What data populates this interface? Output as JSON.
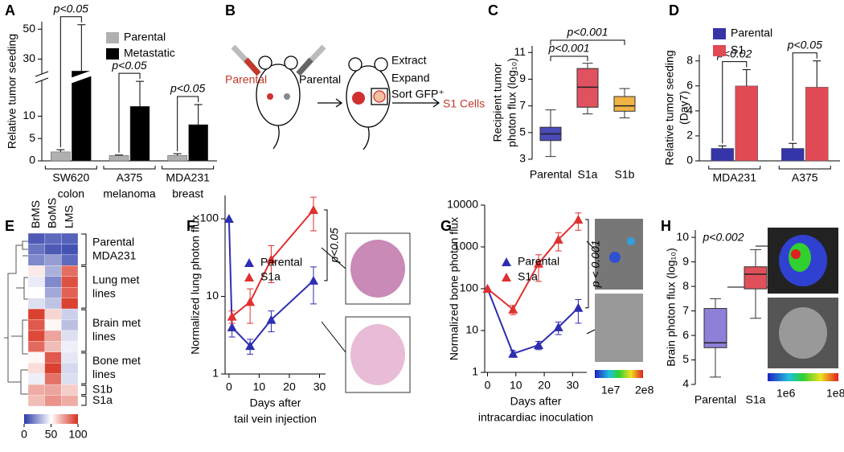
{
  "chart_data": [
    {
      "type": "bar",
      "label": "A",
      "categories": [
        "SW620",
        "A375",
        "MDA231"
      ],
      "category_sublabels": [
        "colon",
        "melanoma",
        "breast"
      ],
      "series": [
        {
          "name": "Parental",
          "color": "#b0b0b0",
          "values": [
            2,
            1.2,
            1.2
          ],
          "errors": [
            0.5,
            0.1,
            0.4
          ]
        },
        {
          "name": "Metastatic",
          "color": "#000000",
          "values": [
            22,
            12.2,
            8.1
          ],
          "errors": [
            31,
            5.6,
            4.5
          ]
        }
      ],
      "ylabel": "Relative tumor seeding",
      "ylim": [
        0,
        55
      ],
      "ybreak": [
        18,
        20
      ],
      "yticks": [
        0,
        5,
        10,
        30,
        50
      ],
      "annotations": [
        "p<0.05",
        "p<0.05",
        "p<0.05"
      ]
    },
    {
      "type": "box",
      "label": "C",
      "categories": [
        "Parental",
        "S1a",
        "S1b"
      ],
      "colors": [
        "#4a4ab8",
        "#e05260",
        "#f0b444"
      ],
      "whisker_low": [
        3.2,
        6.4,
        6.1
      ],
      "q1": [
        4.4,
        6.9,
        6.6
      ],
      "median": [
        4.9,
        8.4,
        7.0
      ],
      "q3": [
        5.4,
        9.8,
        7.7
      ],
      "whisker_high": [
        6.7,
        10.2,
        8.3
      ],
      "ylabel": [
        "Recipient tumor",
        "photon flux  (log₁₀)"
      ],
      "ylim": [
        3,
        11.5
      ],
      "yticks": [
        3,
        5,
        7,
        9,
        11
      ],
      "annotations": [
        "p<0.001",
        "p<0.001"
      ]
    },
    {
      "type": "bar",
      "label": "D",
      "categories": [
        "MDA231",
        "A375"
      ],
      "series": [
        {
          "name": "Parental",
          "color": "#3535a8",
          "values": [
            1,
            1
          ],
          "errors": [
            0.2,
            0.4
          ]
        },
        {
          "name": "S1",
          "color": "#e04a55",
          "values": [
            6,
            5.9
          ],
          "errors": [
            1.3,
            2.1
          ]
        }
      ],
      "ylabel": [
        "Relative tumor seeding",
        "(Day7)"
      ],
      "ylim": [
        0,
        8.5
      ],
      "yticks": [
        0,
        2,
        4,
        6,
        8
      ],
      "annotations": [
        "p<0.02",
        "p<0.05"
      ]
    },
    {
      "type": "heatmap",
      "label": "E",
      "columns": [
        "BrMS",
        "BoMS",
        "LMS"
      ],
      "matrix": [
        [
          8,
          12,
          10
        ],
        [
          15,
          8,
          6
        ],
        [
          20,
          25,
          12
        ],
        [
          55,
          30,
          85
        ],
        [
          45,
          20,
          92
        ],
        [
          50,
          28,
          88
        ],
        [
          42,
          35,
          96
        ],
        [
          96,
          60,
          38
        ],
        [
          90,
          52,
          34
        ],
        [
          94,
          72,
          42
        ],
        [
          86,
          66,
          46
        ],
        [
          52,
          90,
          44
        ],
        [
          58,
          96,
          40
        ],
        [
          46,
          84,
          42
        ],
        [
          70,
          72,
          62
        ],
        [
          66,
          76,
          70
        ]
      ],
      "row_groups": [
        [
          "Parental",
          "MDA231"
        ],
        [
          "Lung met",
          "lines"
        ],
        [
          "Brain met",
          "lines"
        ],
        [
          "Bone met",
          "lines"
        ],
        [
          "S1b"
        ],
        [
          "S1a"
        ]
      ],
      "zlim": [
        0,
        100
      ],
      "colorbar_ticks": [
        0,
        50,
        100
      ]
    },
    {
      "type": "line",
      "label": "F",
      "x": [
        0,
        1,
        7,
        14,
        28
      ],
      "series": [
        {
          "name": "Parental",
          "color": "#2e2eb0",
          "values": [
            100,
            4,
            2.3,
            5,
            16
          ],
          "errors": [
            0,
            1,
            0.5,
            1.5,
            8
          ]
        },
        {
          "name": "S1a",
          "color": "#e03030",
          "values": [
            null,
            5.5,
            8.5,
            30,
            130
          ],
          "errors": [
            null,
            1,
            4,
            15,
            60
          ]
        }
      ],
      "xlabel": [
        "Days after",
        "tail vein injection"
      ],
      "ylabel": "Normalized lung photon flux",
      "log_y": true,
      "xlim": [
        -1.3,
        32
      ],
      "xticks": [
        0,
        10,
        20,
        30
      ],
      "ylim": [
        1,
        200
      ],
      "yticks": [
        1,
        10,
        100
      ],
      "annotations": [
        "p<0.05"
      ]
    },
    {
      "type": "line",
      "label": "G",
      "x": [
        0,
        9,
        18,
        25,
        32
      ],
      "series": [
        {
          "name": "Parental",
          "color": "#2e2eb0",
          "values": [
            100,
            2.8,
            4.5,
            12,
            35
          ],
          "errors": [
            0,
            0.5,
            1,
            4,
            20
          ]
        },
        {
          "name": "S1a",
          "color": "#e03030",
          "values": [
            100,
            32,
            400,
            1500,
            4500
          ],
          "errors": [
            0,
            8,
            250,
            700,
            2000
          ]
        }
      ],
      "xlabel": [
        "Days after",
        "intracardiac inoculation"
      ],
      "ylabel": "Normalized bone photon flux",
      "log_y": true,
      "xlim": [
        -1,
        35
      ],
      "xticks": [
        0,
        10,
        20,
        30
      ],
      "ylim": [
        1,
        10000
      ],
      "yticks": [
        1,
        10,
        100,
        1000,
        10000
      ],
      "annotations": [
        "p < 0.001"
      ],
      "image_scale": [
        "1e7",
        "2e8"
      ]
    },
    {
      "type": "box",
      "label": "H",
      "categories": [
        "Parental",
        "S1a"
      ],
      "colors": [
        "#8e80d8",
        "#e0505a"
      ],
      "whisker_low": [
        4.3,
        6.7
      ],
      "q1": [
        5.5,
        7.9
      ],
      "median": [
        5.7,
        8.5
      ],
      "q3": [
        7.1,
        8.8
      ],
      "whisker_high": [
        7.5,
        9.5
      ],
      "ylabel": "Brain photon flux (log₁₀)",
      "ylim": [
        4,
        10.3
      ],
      "yticks": [
        4,
        5,
        6,
        7,
        8,
        9,
        10
      ],
      "annotations": [
        "p<0.002"
      ],
      "image_scale": [
        "1e6",
        "1e8"
      ]
    }
  ],
  "diagram": {
    "label": "B",
    "texts": [
      "Parental",
      "Parental",
      "Extract",
      "Expand",
      "Sort GFP⁺",
      "S1 Cells"
    ]
  }
}
